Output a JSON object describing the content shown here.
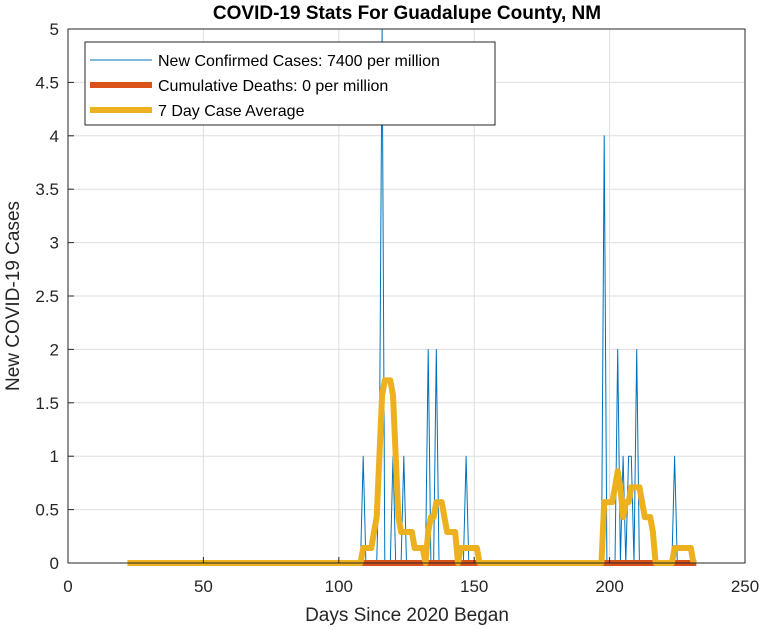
{
  "chart_data": {
    "type": "line",
    "title": "COVID-19 Stats For Guadalupe County, NM",
    "xlabel": "Days Since 2020 Began",
    "ylabel": "New COVID-19 Cases",
    "xlim": [
      0,
      250
    ],
    "ylim": [
      0,
      5
    ],
    "xticks": [
      0,
      50,
      100,
      150,
      200,
      250
    ],
    "xtick_labels": [
      "0",
      "50",
      "100",
      "150",
      "200",
      "250"
    ],
    "yticks": [
      0,
      0.5,
      1,
      1.5,
      2,
      2.5,
      3,
      3.5,
      4,
      4.5,
      5
    ],
    "ytick_labels": [
      "0",
      "0.5",
      "1",
      "1.5",
      "2",
      "2.5",
      "3",
      "3.5",
      "4",
      "4.5",
      "5"
    ],
    "grid": true,
    "legend_position": "top-left",
    "series": [
      {
        "name": "New Confirmed Cases: 7400 per million",
        "color": "#0072BD",
        "points": [
          [
            22,
            0
          ],
          [
            108,
            0
          ],
          [
            109,
            1
          ],
          [
            110,
            0
          ],
          [
            114,
            0
          ],
          [
            115,
            1
          ],
          [
            116,
            5
          ],
          [
            117,
            0
          ],
          [
            119,
            0
          ],
          [
            120,
            1
          ],
          [
            121,
            0
          ],
          [
            123,
            0
          ],
          [
            124,
            1
          ],
          [
            125,
            0
          ],
          [
            132,
            0
          ],
          [
            133,
            2
          ],
          [
            134,
            0
          ],
          [
            135,
            0
          ],
          [
            136,
            2
          ],
          [
            137,
            0
          ],
          [
            146,
            0
          ],
          [
            147,
            1
          ],
          [
            148,
            0
          ],
          [
            197,
            0
          ],
          [
            198,
            4
          ],
          [
            199,
            0
          ],
          [
            202,
            0
          ],
          [
            203,
            2
          ],
          [
            204,
            0
          ],
          [
            205,
            1
          ],
          [
            206,
            0
          ],
          [
            207,
            1
          ],
          [
            208,
            1
          ],
          [
            209,
            0
          ],
          [
            210,
            2
          ],
          [
            211,
            0
          ],
          [
            223,
            0
          ],
          [
            224,
            1
          ],
          [
            225,
            0
          ],
          [
            232,
            0
          ]
        ]
      },
      {
        "name": "Cumulative Deaths: 0 per million",
        "color": "#D95319",
        "points": [
          [
            22,
            0
          ],
          [
            232,
            0
          ]
        ]
      },
      {
        "name": "7 Day Case Average",
        "color": "#EDB120",
        "points": [
          [
            22,
            0
          ],
          [
            108,
            0
          ],
          [
            109,
            0.14
          ],
          [
            112,
            0.14
          ],
          [
            113,
            0.29
          ],
          [
            114,
            0.43
          ],
          [
            115,
            1.0
          ],
          [
            116,
            1.57
          ],
          [
            117,
            1.71
          ],
          [
            119,
            1.71
          ],
          [
            120,
            1.57
          ],
          [
            121,
            1.0
          ],
          [
            122,
            0.43
          ],
          [
            123,
            0.29
          ],
          [
            127,
            0.29
          ],
          [
            128,
            0.14
          ],
          [
            131,
            0.14
          ],
          [
            132,
            0
          ],
          [
            133,
            0.29
          ],
          [
            134,
            0.43
          ],
          [
            135,
            0.43
          ],
          [
            136,
            0.57
          ],
          [
            138,
            0.57
          ],
          [
            139,
            0.43
          ],
          [
            140,
            0.29
          ],
          [
            143,
            0.29
          ],
          [
            144,
            0
          ],
          [
            145,
            0.14
          ],
          [
            151,
            0.14
          ],
          [
            152,
            0
          ],
          [
            197,
            0
          ],
          [
            198,
            0.57
          ],
          [
            201,
            0.57
          ],
          [
            202,
            0.71
          ],
          [
            203,
            0.86
          ],
          [
            204,
            0.71
          ],
          [
            205,
            0.43
          ],
          [
            206,
            0.57
          ],
          [
            207,
            0.57
          ],
          [
            208,
            0.71
          ],
          [
            211,
            0.71
          ],
          [
            212,
            0.57
          ],
          [
            213,
            0.43
          ],
          [
            215,
            0.43
          ],
          [
            216,
            0.29
          ],
          [
            217,
            0
          ],
          [
            223,
            0
          ],
          [
            224,
            0.14
          ],
          [
            230,
            0.14
          ],
          [
            231,
            0
          ]
        ]
      }
    ]
  }
}
